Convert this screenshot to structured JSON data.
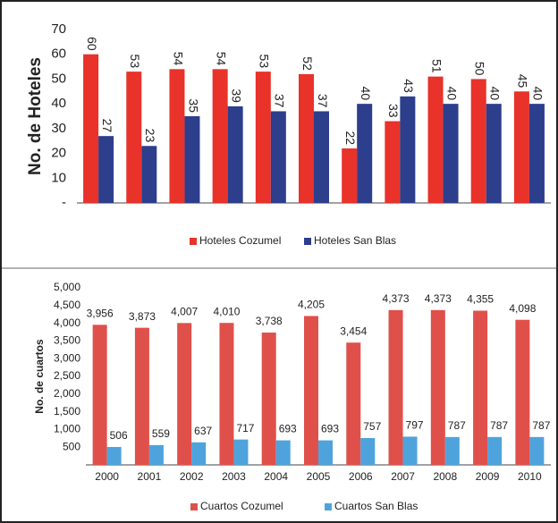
{
  "chart_data": [
    {
      "type": "bar",
      "y_label": "No. de Hoteles",
      "series": [
        {
          "name": "Hoteles Cozumel",
          "color": "#e8322a",
          "values": [
            60,
            53,
            54,
            54,
            53,
            52,
            22,
            33,
            51,
            50,
            45
          ]
        },
        {
          "name": "Hoteles San Blas",
          "color": "#2c3e8c",
          "values": [
            27,
            23,
            35,
            39,
            37,
            37,
            40,
            43,
            40,
            40,
            40
          ]
        }
      ],
      "ylim": [
        0,
        70
      ],
      "yticks": [
        {
          "value": 0,
          "label": "-"
        },
        10,
        20,
        30,
        40,
        50,
        60,
        70
      ],
      "legend": "bottom"
    },
    {
      "type": "bar",
      "y_label": "No. de cuartos",
      "categories": [
        "2000",
        "2001",
        "2002",
        "2003",
        "2004",
        "2005",
        "2006",
        "2007",
        "2008",
        "2009",
        "2010"
      ],
      "series": [
        {
          "name": "Cuartos Cozumel",
          "color": "#e0504a",
          "values": [
            3956,
            3873,
            4007,
            4010,
            3738,
            4205,
            3454,
            4373,
            4373,
            4355,
            4098
          ],
          "value_labels": [
            "3,956",
            "3,873",
            "4,007",
            "4,010",
            "3,738",
            "4,205",
            "3,454",
            "4,373",
            "4,373",
            "4,355",
            "4,098"
          ]
        },
        {
          "name": "Cuartos San Blas",
          "color": "#4fa3dc",
          "values": [
            506,
            559,
            637,
            717,
            693,
            693,
            757,
            797,
            787,
            787,
            787
          ]
        }
      ],
      "ylim": [
        0,
        5000
      ],
      "yticks": [
        500,
        {
          "value": 1000,
          "label": "1,000"
        },
        {
          "value": 1500,
          "label": "1,500"
        },
        {
          "value": 2000,
          "label": "2,000"
        },
        {
          "value": 2500,
          "label": "2,500"
        },
        {
          "value": 3000,
          "label": "3,000"
        },
        {
          "value": 3500,
          "label": "3,500"
        },
        {
          "value": 4000,
          "label": "4,000"
        },
        {
          "value": 4500,
          "label": "4,500"
        },
        {
          "value": 5000,
          "label": "5,000"
        }
      ],
      "legend": "bottom"
    }
  ]
}
